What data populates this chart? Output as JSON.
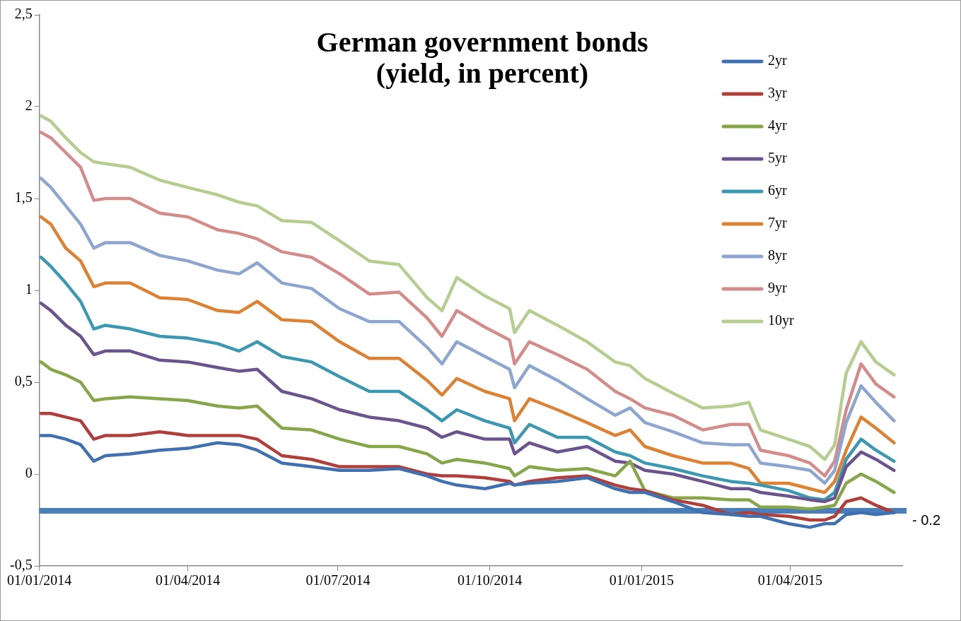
{
  "chart_data": {
    "type": "line",
    "title": "German government bonds\n(yield, in percent)",
    "x": [
      "2014-01-02",
      "2014-01-08",
      "2014-01-17",
      "2014-01-26",
      "2014-02-03",
      "2014-02-10",
      "2014-02-25",
      "2014-03-15",
      "2014-04-01",
      "2014-04-19",
      "2014-05-02",
      "2014-05-13",
      "2014-05-28",
      "2014-06-15",
      "2014-07-02",
      "2014-07-20",
      "2014-08-07",
      "2014-08-24",
      "2014-09-02",
      "2014-09-11",
      "2014-09-28",
      "2014-10-13",
      "2014-10-16",
      "2014-10-25",
      "2014-11-11",
      "2014-11-29",
      "2014-12-16",
      "2014-12-25",
      "2015-01-03",
      "2015-01-20",
      "2015-02-07",
      "2015-02-24",
      "2015-03-07",
      "2015-03-14",
      "2015-03-31",
      "2015-04-13",
      "2015-04-22",
      "2015-04-28",
      "2015-05-05",
      "2015-05-14",
      "2015-05-23",
      "2015-06-03"
    ],
    "series": [
      {
        "name": "2yr",
        "color": "#4170b0",
        "values": [
          0.21,
          0.21,
          0.19,
          0.16,
          0.07,
          0.1,
          0.11,
          0.13,
          0.14,
          0.17,
          0.16,
          0.13,
          0.06,
          0.04,
          0.02,
          0.02,
          0.03,
          -0.01,
          -0.04,
          -0.06,
          -0.08,
          -0.05,
          -0.06,
          -0.05,
          -0.04,
          -0.02,
          -0.08,
          -0.1,
          -0.1,
          -0.15,
          -0.21,
          -0.22,
          -0.23,
          -0.23,
          -0.27,
          -0.29,
          -0.27,
          -0.27,
          -0.22,
          -0.21,
          -0.22,
          -0.21
        ]
      },
      {
        "name": "3yr",
        "color": "#b03f3c",
        "values": [
          0.33,
          0.33,
          0.31,
          0.29,
          0.19,
          0.21,
          0.21,
          0.23,
          0.21,
          0.21,
          0.21,
          0.19,
          0.1,
          0.08,
          0.04,
          0.04,
          0.04,
          0.0,
          -0.01,
          -0.01,
          -0.02,
          -0.04,
          -0.06,
          -0.04,
          -0.02,
          -0.01,
          -0.06,
          -0.08,
          -0.09,
          -0.14,
          -0.17,
          -0.22,
          -0.21,
          -0.22,
          -0.23,
          -0.25,
          -0.25,
          -0.23,
          -0.15,
          -0.13,
          -0.17,
          -0.21
        ]
      },
      {
        "name": "4yr",
        "color": "#86a649",
        "values": [
          0.61,
          0.57,
          0.54,
          0.5,
          0.4,
          0.41,
          0.42,
          0.41,
          0.4,
          0.37,
          0.36,
          0.37,
          0.25,
          0.24,
          0.19,
          0.15,
          0.15,
          0.11,
          0.06,
          0.08,
          0.06,
          0.03,
          -0.01,
          0.04,
          0.02,
          0.03,
          -0.01,
          0.07,
          -0.09,
          -0.13,
          -0.13,
          -0.14,
          -0.14,
          -0.18,
          -0.18,
          -0.19,
          -0.18,
          -0.17,
          -0.05,
          0.0,
          -0.04,
          -0.1
        ]
      },
      {
        "name": "5yr",
        "color": "#6b548e",
        "values": [
          0.93,
          0.89,
          0.81,
          0.75,
          0.65,
          0.67,
          0.67,
          0.62,
          0.61,
          0.58,
          0.56,
          0.57,
          0.45,
          0.41,
          0.35,
          0.31,
          0.29,
          0.25,
          0.2,
          0.23,
          0.19,
          0.19,
          0.11,
          0.17,
          0.12,
          0.15,
          0.07,
          0.06,
          0.02,
          0.0,
          -0.04,
          -0.08,
          -0.08,
          -0.1,
          -0.12,
          -0.14,
          -0.15,
          -0.13,
          0.04,
          0.12,
          0.08,
          0.02
        ]
      },
      {
        "name": "6yr",
        "color": "#3b98b0",
        "values": [
          1.18,
          1.13,
          1.04,
          0.94,
          0.79,
          0.81,
          0.79,
          0.75,
          0.74,
          0.71,
          0.67,
          0.72,
          0.64,
          0.61,
          0.53,
          0.45,
          0.45,
          0.35,
          0.29,
          0.35,
          0.29,
          0.25,
          0.17,
          0.27,
          0.2,
          0.2,
          0.12,
          0.1,
          0.06,
          0.03,
          -0.01,
          -0.04,
          -0.05,
          -0.06,
          -0.09,
          -0.13,
          -0.14,
          -0.1,
          0.08,
          0.19,
          0.13,
          0.07
        ]
      },
      {
        "name": "7yr",
        "color": "#dd8133",
        "values": [
          1.4,
          1.36,
          1.23,
          1.16,
          1.02,
          1.04,
          1.04,
          0.96,
          0.95,
          0.89,
          0.88,
          0.94,
          0.84,
          0.83,
          0.72,
          0.63,
          0.63,
          0.51,
          0.43,
          0.52,
          0.45,
          0.41,
          0.29,
          0.41,
          0.35,
          0.28,
          0.21,
          0.24,
          0.15,
          0.1,
          0.06,
          0.06,
          0.03,
          -0.05,
          -0.05,
          -0.08,
          -0.1,
          -0.04,
          0.13,
          0.31,
          0.25,
          0.17
        ]
      },
      {
        "name": "8yr",
        "color": "#8da6cf",
        "values": [
          1.61,
          1.56,
          1.46,
          1.36,
          1.23,
          1.26,
          1.26,
          1.19,
          1.16,
          1.11,
          1.09,
          1.15,
          1.04,
          1.01,
          0.9,
          0.83,
          0.83,
          0.69,
          0.6,
          0.72,
          0.64,
          0.57,
          0.47,
          0.59,
          0.51,
          0.41,
          0.32,
          0.36,
          0.28,
          0.23,
          0.17,
          0.16,
          0.16,
          0.06,
          0.04,
          0.02,
          -0.05,
          0.02,
          0.28,
          0.48,
          0.39,
          0.29
        ]
      },
      {
        "name": "9yr",
        "color": "#d38c8a",
        "values": [
          1.86,
          1.83,
          1.75,
          1.67,
          1.49,
          1.5,
          1.5,
          1.42,
          1.4,
          1.33,
          1.31,
          1.28,
          1.21,
          1.18,
          1.09,
          0.98,
          0.99,
          0.85,
          0.75,
          0.89,
          0.8,
          0.73,
          0.6,
          0.72,
          0.65,
          0.57,
          0.45,
          0.41,
          0.36,
          0.32,
          0.24,
          0.27,
          0.27,
          0.13,
          0.1,
          0.06,
          -0.01,
          0.07,
          0.35,
          0.6,
          0.49,
          0.42
        ]
      },
      {
        "name": "10yr",
        "color": "#b5cd8f",
        "values": [
          1.95,
          1.92,
          1.83,
          1.75,
          1.7,
          1.69,
          1.67,
          1.6,
          1.56,
          1.52,
          1.48,
          1.46,
          1.38,
          1.37,
          1.27,
          1.16,
          1.14,
          0.96,
          0.89,
          1.07,
          0.97,
          0.9,
          0.77,
          0.89,
          0.81,
          0.72,
          0.61,
          0.59,
          0.52,
          0.44,
          0.36,
          0.37,
          0.39,
          0.24,
          0.19,
          0.15,
          0.08,
          0.16,
          0.55,
          0.72,
          0.61,
          0.54
        ]
      }
    ],
    "xlim": [
      "2014-01-01",
      "2015-06-08"
    ],
    "xticks": [
      {
        "value": "2014-01-01",
        "label": "01/01/2014"
      },
      {
        "value": "2014-04-01",
        "label": "01/04/2014"
      },
      {
        "value": "2014-07-01",
        "label": "01/07/2014"
      },
      {
        "value": "2014-10-01",
        "label": "01/10/2014"
      },
      {
        "value": "2015-01-01",
        "label": "01/01/2015"
      },
      {
        "value": "2015-04-01",
        "label": "01/04/2015"
      }
    ],
    "ylim": [
      -0.5,
      2.5
    ],
    "yticks": [
      {
        "value": -0.5,
        "label": "-0,5"
      },
      0,
      {
        "value": 0.5,
        "label": "0,5"
      },
      1,
      {
        "value": 1.5,
        "label": "1,5"
      },
      2,
      {
        "value": 2.5,
        "label": "2,5"
      }
    ],
    "ref_lines": [
      {
        "axis": "y",
        "value": -0.2,
        "label": "- 0.2",
        "color": "#4a7ebb"
      }
    ],
    "legend": "top right",
    "marker": "none",
    "line_style": "solid"
  }
}
